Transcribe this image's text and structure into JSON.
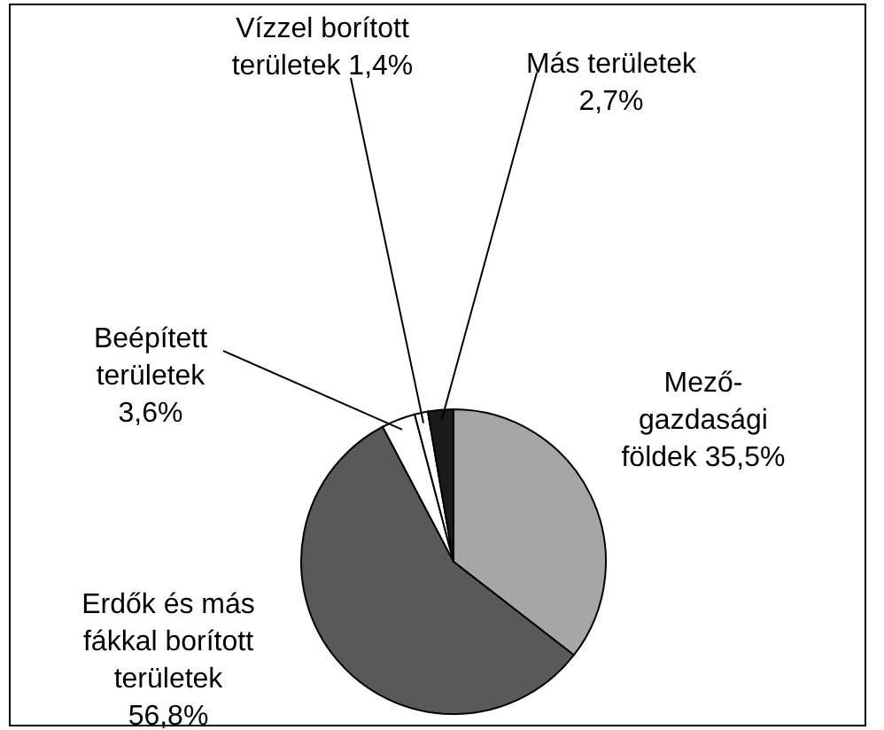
{
  "chart_data": {
    "type": "pie",
    "categories": [
      "Mező-\ngazdasági\nföldek",
      "Erdők és más\nfákkal borított\nterületek\n",
      "Beépített\nterületek\n",
      "Vízzel borított\nterületek",
      "Más területek\n"
    ],
    "values": [
      35.5,
      56.8,
      3.6,
      1.4,
      2.7
    ],
    "value_labels": [
      "35,5%",
      "56,8%",
      "3,6%",
      "1,4%",
      "2,7%"
    ],
    "colors": [
      "#a6a6a6",
      "#595959",
      "#ffffff",
      "#ffffff",
      "#1a1a1a"
    ]
  }
}
